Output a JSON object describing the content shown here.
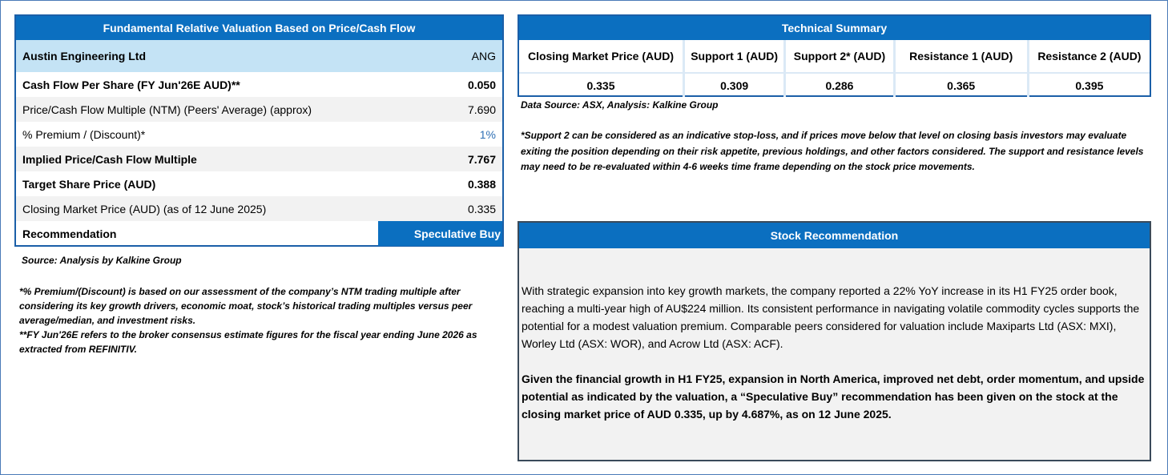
{
  "valuation": {
    "title": "Fundamental Relative Valuation Based on Price/Cash Flow",
    "company": "Austin Engineering Ltd",
    "ticker": "ANG",
    "rows": [
      {
        "label": "Cash Flow Per Share (FY Jun'26E AUD)**",
        "value": "0.050",
        "bold": true
      },
      {
        "label": "Price/Cash Flow Multiple (NTM) (Peers' Average) (approx)",
        "value": "7.690",
        "bold": false
      },
      {
        "label": "% Premium / (Discount)*",
        "value": "1%",
        "bold": false
      },
      {
        "label": "Implied Price/Cash Flow Multiple",
        "value": "7.767",
        "bold": true
      },
      {
        "label": "Target Share Price (AUD)",
        "value": "0.388",
        "bold": true
      },
      {
        "label": "Closing Market Price (AUD) (as of 12 June 2025)",
        "value": "0.335",
        "bold": false
      }
    ],
    "recommendation_label": "Recommendation",
    "recommendation": "Speculative Buy",
    "source": "Source: Analysis by Kalkine Group",
    "notes": [
      "*% Premium/(Discount) is based on our assessment of the company’s NTM trading multiple after considering its key growth drivers, economic moat, stock’s historical trading multiples versus peer average/median, and investment risks.",
      "**FY Jun'26E refers to the broker consensus estimate figures for the fiscal year ending June 2026 as extracted from REFINITIV."
    ]
  },
  "technical": {
    "title": "Technical Summary",
    "headers": [
      "Closing Market Price (AUD)",
      "Support 1 (AUD)",
      "Support 2* (AUD)",
      "Resistance 1 (AUD)",
      "Resistance 2 (AUD)"
    ],
    "values": [
      "0.335",
      "0.309",
      "0.286",
      "0.365",
      "0.395"
    ],
    "source": "Data Source: ASX, Analysis: Kalkine Group",
    "note": "*Support 2 can be considered as an indicative stop-loss, and if prices move below that level on closing basis investors may evaluate exiting the position depending on their risk appetite, previous holdings, and other factors considered. The support and resistance levels may need to be re-evaluated within 4-6 weeks time frame depending on the stock price movements."
  },
  "recommendation": {
    "title": "Stock Recommendation",
    "paragraphs": [
      "With strategic expansion into key growth markets, the company reported a 22% YoY increase in its H1 FY25 order book, reaching a multi-year high of AU$224 million. Its consistent performance in navigating volatile commodity cycles supports the potential for a modest valuation premium. Comparable peers considered for valuation include Maxiparts Ltd (ASX: MXI), Worley Ltd (ASX: WOR), and Acrow Ltd (ASX: ACF).",
      "Given the financial growth in H1 FY25, expansion in North America, improved net debt, order momentum, and upside potential as indicated by the valuation, a “Speculative Buy” recommendation has been given on the stock at the closing market price of AUD 0.335, up by 4.687%, as on 12 June 2025."
    ]
  }
}
